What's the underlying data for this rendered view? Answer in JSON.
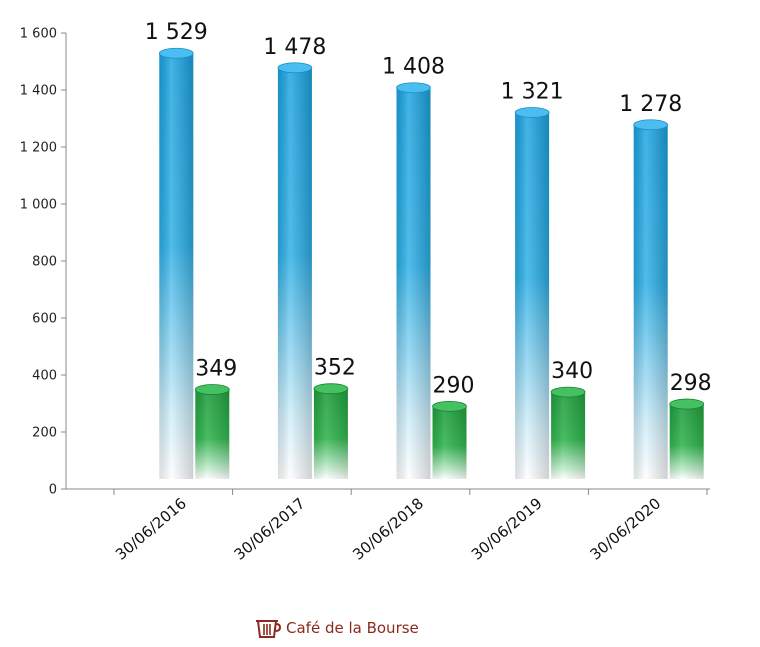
{
  "chart_data": {
    "type": "bar",
    "categories": [
      "30/06/2016",
      "30/06/2017",
      "30/06/2018",
      "30/06/2019",
      "30/06/2020"
    ],
    "series": [
      {
        "values": [
          1529,
          1478,
          1408,
          1321,
          1278
        ],
        "labels": [
          "1 529",
          "1 478",
          "1 408",
          "1 321",
          "1 278"
        ],
        "color": "#1aa3e0"
      },
      {
        "values": [
          349,
          352,
          290,
          340,
          298
        ],
        "labels": [
          "349",
          "352",
          "290",
          "340",
          "298"
        ],
        "color": "#1f9a3c"
      }
    ],
    "yticks": [
      "0",
      "200",
      "400",
      "600",
      "800",
      "1 000",
      "1 200",
      "1 400",
      "1 600"
    ],
    "ylim": [
      0,
      1600
    ],
    "grid": false,
    "legend": "none"
  },
  "brand": {
    "name": "Café de la Bourse",
    "icon": "cafe-cup-icon",
    "color": "#8b2a1e"
  }
}
